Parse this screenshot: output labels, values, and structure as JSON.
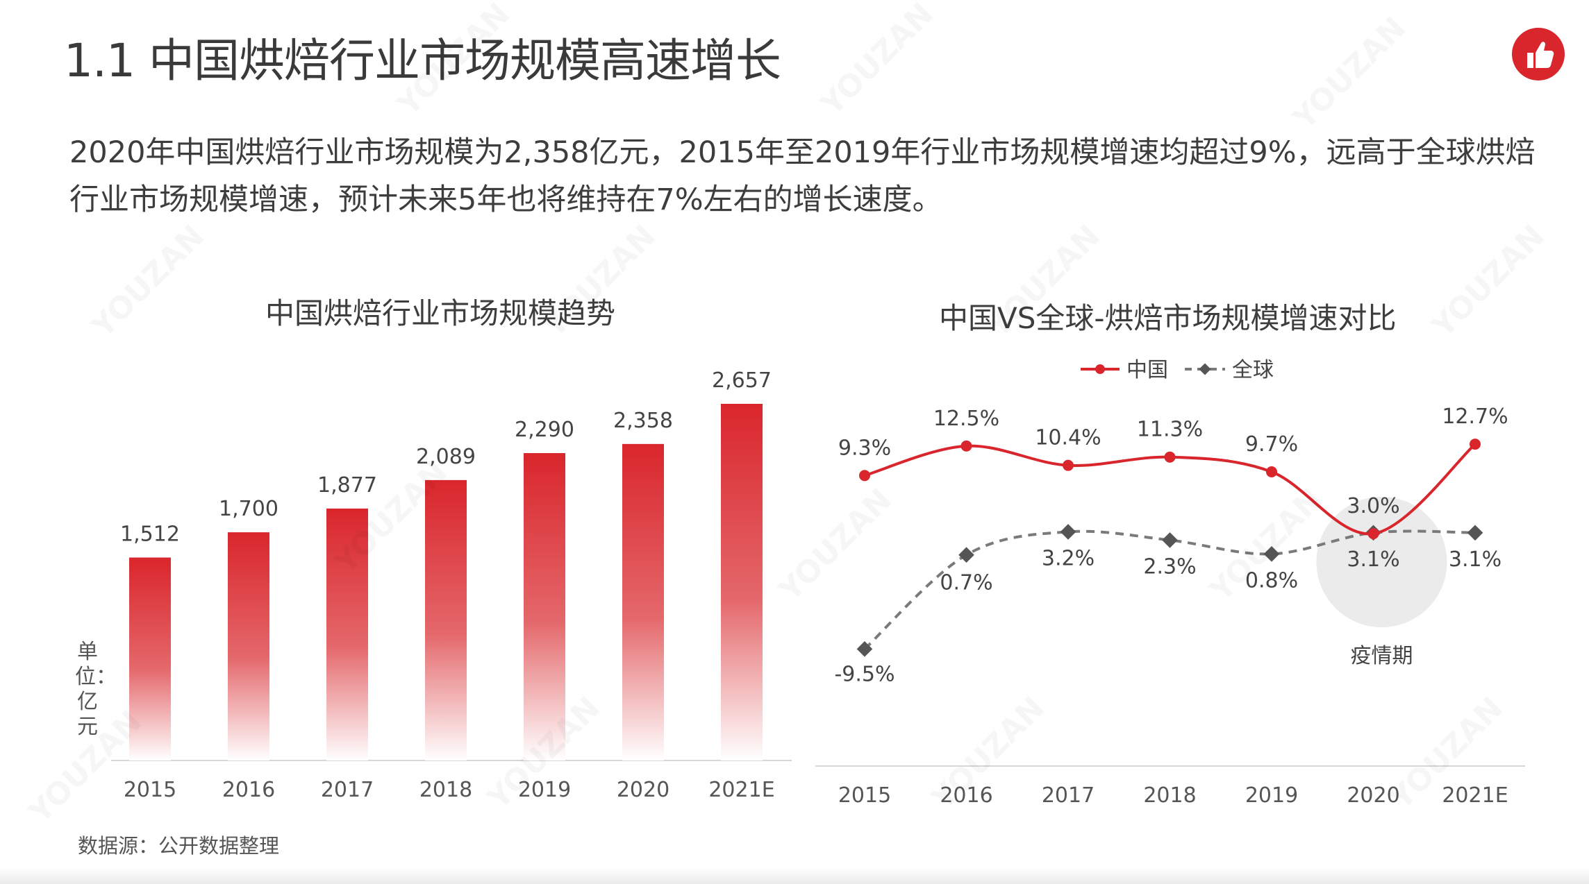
{
  "page": {
    "title": "1.1 中国烘焙行业市场规模高速增长",
    "summary": "2020年中国烘焙行业市场规模为2,358亿元，2015年至2019年行业市场规模增速均超过9%，远高于全球烘焙行业市场规模增速，预计未来5年也将维持在7%左右的增长速度。",
    "unit_label": "单位：亿元",
    "source": "数据源：公开数据整理",
    "watermark": "YOUZAN",
    "logo_icon": "thumbs-up-icon",
    "accent_color": "#d9262c"
  },
  "chart_data": [
    {
      "type": "bar",
      "title": "中国烘焙行业市场规模趋势",
      "categories": [
        "2015",
        "2016",
        "2017",
        "2018",
        "2019",
        "2020",
        "2021E"
      ],
      "values": [
        1512,
        1700,
        1877,
        2089,
        2290,
        2358,
        2657
      ],
      "value_labels": [
        "1,512",
        "1,700",
        "1,877",
        "2,089",
        "2,290",
        "2,358",
        "2,657"
      ],
      "ylabel": "单位：亿元",
      "ylim": [
        0,
        2750
      ],
      "grid": false,
      "color": "#d9262c"
    },
    {
      "type": "line",
      "title": "中国VS全球-烘焙市场规模增速对比",
      "x": [
        "2015",
        "2016",
        "2017",
        "2018",
        "2019",
        "2020",
        "2021E"
      ],
      "series": [
        {
          "name": "中国",
          "values": [
            9.3,
            12.5,
            10.4,
            11.3,
            9.7,
            3.0,
            12.7
          ],
          "labels": [
            "9.3%",
            "12.5%",
            "10.4%",
            "11.3%",
            "9.7%",
            "3.0%",
            "12.7%"
          ],
          "color": "#d9262c",
          "style": "solid"
        },
        {
          "name": "全球",
          "values": [
            -9.5,
            0.7,
            3.2,
            2.3,
            0.8,
            3.1,
            3.1
          ],
          "labels": [
            "-9.5%",
            "0.7%",
            "3.2%",
            "2.3%",
            "0.8%",
            "3.1%",
            "3.1%"
          ],
          "color": "#777777",
          "style": "dashed"
        }
      ],
      "annotations": [
        {
          "x": "2020",
          "text": "疫情期"
        }
      ],
      "legend": "top-center",
      "ylim": [
        -12,
        15
      ],
      "grid": false
    }
  ]
}
